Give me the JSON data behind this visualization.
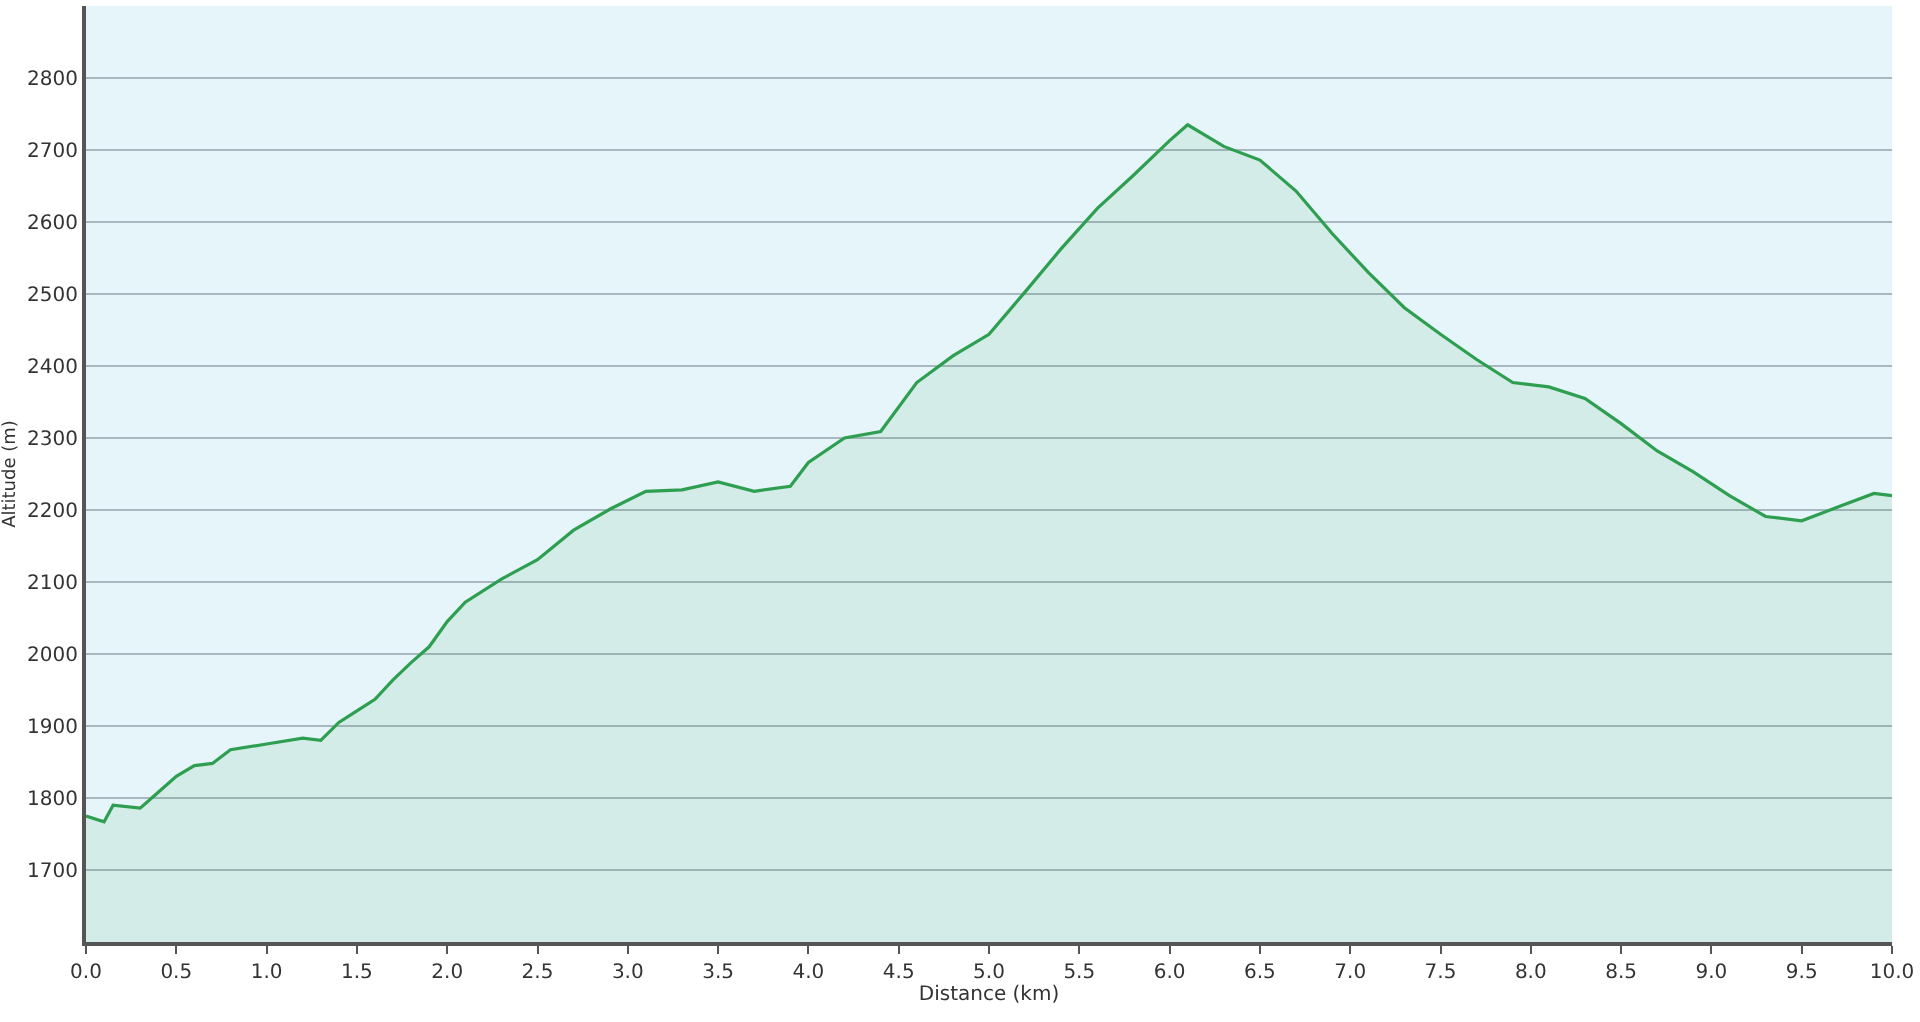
{
  "chart_data": {
    "type": "area",
    "xlabel": "Distance (km)",
    "ylabel": "Altitude (m)",
    "x": [
      0,
      0.1,
      0.15,
      0.3,
      0.4,
      0.5,
      0.6,
      0.7,
      0.8,
      1.0,
      1.2,
      1.3,
      1.4,
      1.5,
      1.6,
      1.7,
      1.8,
      1.9,
      2.0,
      2.1,
      2.3,
      2.5,
      2.7,
      2.9,
      3.1,
      3.3,
      3.5,
      3.7,
      3.9,
      4.0,
      4.2,
      4.4,
      4.6,
      4.8,
      5.0,
      5.2,
      5.4,
      5.6,
      5.8,
      6.0,
      6.1,
      6.3,
      6.5,
      6.7,
      6.9,
      7.1,
      7.3,
      7.5,
      7.7,
      7.9,
      8.1,
      8.3,
      8.5,
      8.7,
      8.9,
      9.1,
      9.3,
      9.5,
      9.7,
      9.9,
      10.0
    ],
    "series": [
      {
        "color": "#2e9e50",
        "values": [
          1775,
          1767,
          1790,
          1786,
          1808,
          1830,
          1845,
          1848,
          1867,
          1875,
          1883,
          1880,
          1905,
          1921,
          1937,
          1964,
          1988,
          2010,
          2045,
          2072,
          2104,
          2131,
          2172,
          2201,
          2226,
          2228,
          2239,
          2226,
          2233,
          2266,
          2300,
          2309,
          2377,
          2414,
          2444,
          2503,
          2563,
          2619,
          2665,
          2713,
          2735,
          2705,
          2686,
          2643,
          2584,
          2530,
          2481,
          2444,
          2409,
          2377,
          2371,
          2355,
          2320,
          2282,
          2253,
          2220,
          2191,
          2185,
          2204,
          2223,
          2220
        ]
      }
    ],
    "xlim": [
      0,
      10
    ],
    "ylim": [
      1600,
      2900
    ],
    "xticks": [
      {
        "value": 0,
        "label": "0.0"
      },
      {
        "value": 0.5,
        "label": "0.5"
      },
      {
        "value": 1,
        "label": "1.0"
      },
      {
        "value": 1.5,
        "label": "1.5"
      },
      {
        "value": 2,
        "label": "2.0"
      },
      {
        "value": 2.5,
        "label": "2.5"
      },
      {
        "value": 3,
        "label": "3.0"
      },
      {
        "value": 3.5,
        "label": "3.5"
      },
      {
        "value": 4,
        "label": "4.0"
      },
      {
        "value": 4.5,
        "label": "4.5"
      },
      {
        "value": 5,
        "label": "5.0"
      },
      {
        "value": 5.5,
        "label": "5.5"
      },
      {
        "value": 6,
        "label": "6.0"
      },
      {
        "value": 6.5,
        "label": "6.5"
      },
      {
        "value": 7,
        "label": "7.0"
      },
      {
        "value": 7.5,
        "label": "7.5"
      },
      {
        "value": 8,
        "label": "8.0"
      },
      {
        "value": 8.5,
        "label": "8.5"
      },
      {
        "value": 9,
        "label": "9.0"
      },
      {
        "value": 9.5,
        "label": "9.5"
      },
      {
        "value": 10,
        "label": "10.0"
      }
    ],
    "yticks": [
      1700,
      1800,
      1900,
      2000,
      2100,
      2200,
      2300,
      2400,
      2500,
      2600,
      2700,
      2800
    ],
    "grid": "y",
    "marker": "none",
    "line_style": "solid"
  }
}
